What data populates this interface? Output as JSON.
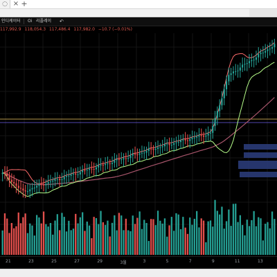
{
  "window": {
    "tab_add": "+"
  },
  "toolbar": {
    "items": [
      "인디케이터",
      "Oi",
      "리플레이"
    ],
    "undo_icon": "undo-icon"
  },
  "legend": {
    "ohlc_values": [
      "117,992.9",
      "118,054.3",
      "117,486.4",
      "117,982.0",
      "−10.7 (−0.01%)"
    ]
  },
  "colors": {
    "up": "#26a69a",
    "down": "#ef5350",
    "upper_band": "#ff6b6b",
    "lower_band": "#b7ff8a",
    "ma": "#a8556b",
    "hline_gold": "#d7b35a",
    "hline_violet": "#6c5ce7"
  },
  "chart_data": {
    "type": "candlestick",
    "x_ticks": [
      "21",
      "23",
      "25",
      "27",
      "29",
      "3월",
      "3",
      "5",
      "7",
      "9",
      "11",
      "13"
    ]
  }
}
